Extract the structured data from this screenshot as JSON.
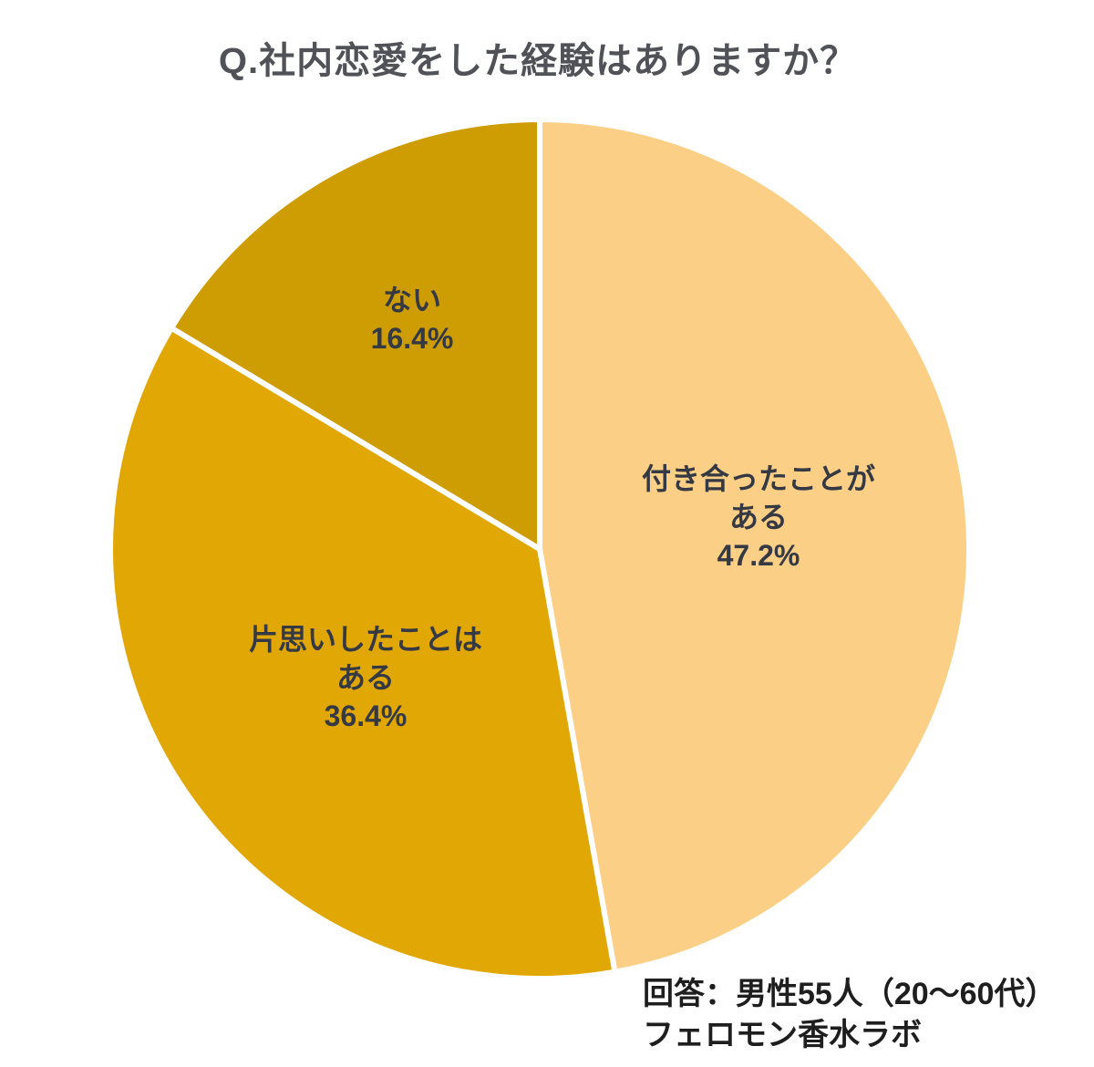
{
  "chart_data": {
    "type": "pie",
    "title": "Q.社内恋愛をした経験はありますか？",
    "units": "%",
    "total": 100,
    "start_angle": "top",
    "direction": "clockwise",
    "legend": "none",
    "divider_color": "#ffffff",
    "label_color": "#343943",
    "slices": [
      {
        "label": "付き合ったことがある",
        "value": 47.2,
        "color": "#fccf86",
        "label_lines": [
          "付き合ったことが",
          "ある",
          "47.2%"
        ]
      },
      {
        "label": "片思いしたことはある",
        "value": 36.4,
        "color": "#e1a805",
        "label_lines": [
          "片思いしたことは",
          "ある",
          "36.4%"
        ]
      },
      {
        "label": "ない",
        "value": 16.4,
        "color": "#ce9d03",
        "label_lines": [
          "ない",
          "16.4%"
        ]
      }
    ],
    "annotations": [
      "回答：男性55人（20～60代）",
      "フェロモン香水ラボ"
    ]
  }
}
